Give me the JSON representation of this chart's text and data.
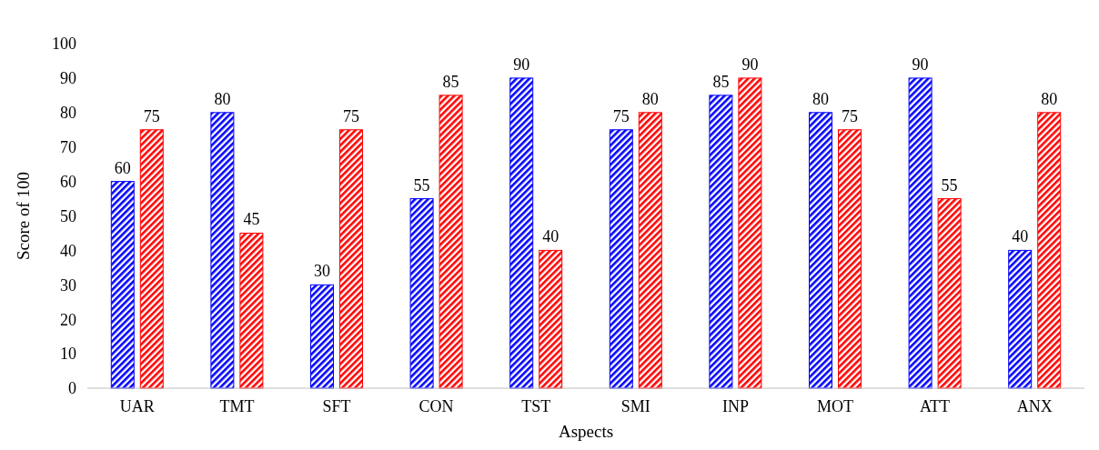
{
  "chart_data": {
    "type": "bar",
    "xlabel": "Aspects",
    "ylabel": "Score of 100",
    "categories": [
      "UAR",
      "TMT",
      "SFT",
      "CON",
      "TST",
      "SMI",
      "INP",
      "MOT",
      "ATT",
      "ANX"
    ],
    "series": [
      {
        "color": "#0000ff",
        "values": [
          60,
          80,
          30,
          55,
          90,
          75,
          85,
          80,
          90,
          40
        ]
      },
      {
        "color": "#ff0000",
        "values": [
          75,
          45,
          75,
          85,
          40,
          80,
          90,
          75,
          55,
          80
        ]
      }
    ],
    "ylim": [
      0,
      100
    ],
    "yticks": [
      0,
      10,
      20,
      30,
      40,
      50,
      60,
      70,
      80,
      90,
      100
    ],
    "grid": false,
    "data_labels": true
  }
}
